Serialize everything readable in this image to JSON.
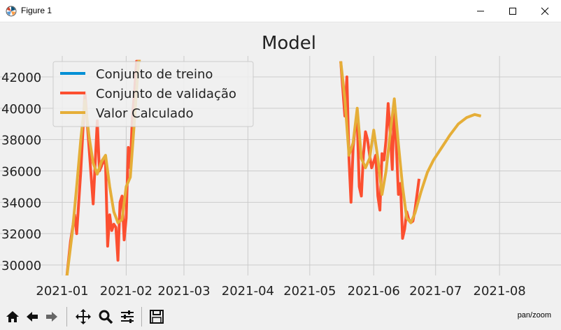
{
  "window": {
    "title": "Figure 1"
  },
  "toolbar": {
    "buttons": [
      {
        "name": "home-icon"
      },
      {
        "name": "back-arrow-icon"
      },
      {
        "name": "forward-arrow-icon"
      },
      {
        "name": "pan-icon"
      },
      {
        "name": "zoom-magnifier-icon"
      },
      {
        "name": "subplots-config-icon"
      },
      {
        "name": "save-floppy-icon"
      }
    ],
    "mode": "pan/zoom"
  },
  "colors": {
    "train": "#008fd5",
    "valid": "#fc4f30",
    "pred": "#e5ae38"
  },
  "chart_data": {
    "type": "line",
    "title": "Model",
    "xlabel": "",
    "ylabel": "",
    "xlim": [
      "2020-12-29",
      "2021-08-23"
    ],
    "ylim": [
      29000,
      43000
    ],
    "xticks": [
      "2021-01",
      "2021-02",
      "2021-03",
      "2021-04",
      "2021-05",
      "2021-06",
      "2021-07",
      "2021-08"
    ],
    "yticks": [
      30000,
      32000,
      34000,
      36000,
      38000,
      40000,
      42000
    ],
    "grid": true,
    "legend": "upper-left",
    "series": [
      {
        "name": "Conjunto de treino",
        "x": [],
        "y": []
      },
      {
        "name": "Conjunto de validação",
        "x": [
          "2021-01-03",
          "2021-01-05",
          "2021-01-07",
          "2021-01-08",
          "2021-01-10",
          "2021-01-12",
          "2021-01-14",
          "2021-01-16",
          "2021-01-18",
          "2021-01-19",
          "2021-01-20",
          "2021-01-21",
          "2021-01-22",
          "2021-01-23",
          "2021-01-24",
          "2021-01-25",
          "2021-01-26",
          "2021-01-27",
          "2021-01-28",
          "2021-01-29",
          "2021-01-30",
          "2021-01-31",
          "2021-02-01",
          "2021-02-02",
          "2021-02-03",
          "2021-02-04",
          "2021-02-05",
          "2021-02-06",
          "2021-02-07",
          "2021-02-08",
          "2021-05-16",
          "2021-05-18",
          "2021-05-19",
          "2021-05-20",
          "2021-05-21",
          "2021-05-22",
          "2021-05-23",
          "2021-05-24",
          "2021-05-25",
          "2021-05-26",
          "2021-05-27",
          "2021-05-28",
          "2021-05-29",
          "2021-05-30",
          "2021-05-31",
          "2021-06-01",
          "2021-06-02",
          "2021-06-03",
          "2021-06-04",
          "2021-06-05",
          "2021-06-06",
          "2021-06-07",
          "2021-06-08",
          "2021-06-09",
          "2021-06-10",
          "2021-06-11",
          "2021-06-12",
          "2021-06-13",
          "2021-06-14",
          "2021-06-15",
          "2021-06-16",
          "2021-06-17",
          "2021-06-18",
          "2021-06-19",
          "2021-06-20",
          "2021-06-21",
          "2021-06-22",
          "2021-06-23"
        ],
        "y": [
          29000,
          31500,
          33200,
          32000,
          36000,
          41000,
          37500,
          33900,
          39200,
          36000,
          36300,
          36700,
          36400,
          31200,
          33200,
          32200,
          32600,
          32400,
          30300,
          34000,
          34400,
          31600,
          33000,
          37500,
          36200,
          39500,
          41000,
          43000,
          43000,
          43000,
          43000,
          39500,
          42000,
          36800,
          34000,
          37500,
          38800,
          39200,
          35000,
          34400,
          37000,
          38500,
          38000,
          37000,
          36200,
          36600,
          37000,
          34400,
          33500,
          37100,
          36700,
          38000,
          40300,
          38500,
          36100,
          40500,
          37500,
          34500,
          35200,
          31700,
          32300,
          33400,
          32900,
          32700,
          32800,
          33500,
          34500,
          35500
        ]
      },
      {
        "name": "Valor Calculado",
        "x": [
          "2021-01-03",
          "2021-01-06",
          "2021-01-08",
          "2021-01-10",
          "2021-01-12",
          "2021-01-14",
          "2021-01-16",
          "2021-01-18",
          "2021-01-20",
          "2021-01-22",
          "2021-01-24",
          "2021-01-26",
          "2021-01-28",
          "2021-01-30",
          "2021-02-01",
          "2021-02-03",
          "2021-02-05",
          "2021-02-07",
          "2021-02-08",
          "2021-05-16",
          "2021-05-18",
          "2021-05-20",
          "2021-05-22",
          "2021-05-24",
          "2021-05-26",
          "2021-05-28",
          "2021-05-30",
          "2021-06-01",
          "2021-06-03",
          "2021-06-05",
          "2021-06-07",
          "2021-06-09",
          "2021-06-11",
          "2021-06-13",
          "2021-06-15",
          "2021-06-17",
          "2021-06-19",
          "2021-06-21",
          "2021-06-24",
          "2021-06-27",
          "2021-06-30",
          "2021-07-04",
          "2021-07-08",
          "2021-07-12",
          "2021-07-16",
          "2021-07-20",
          "2021-07-23"
        ],
        "y": [
          29000,
          32200,
          35000,
          38000,
          40500,
          38200,
          36500,
          35800,
          36600,
          37000,
          35000,
          33400,
          32700,
          32900,
          35000,
          35600,
          39200,
          43000,
          43000,
          43000,
          40600,
          37000,
          37800,
          40000,
          36800,
          36200,
          36800,
          38600,
          36800,
          34500,
          36000,
          38400,
          40600,
          37700,
          35000,
          33000,
          32700,
          33300,
          34700,
          35900,
          36700,
          37500,
          38300,
          39000,
          39400,
          39600,
          39500
        ]
      }
    ]
  }
}
